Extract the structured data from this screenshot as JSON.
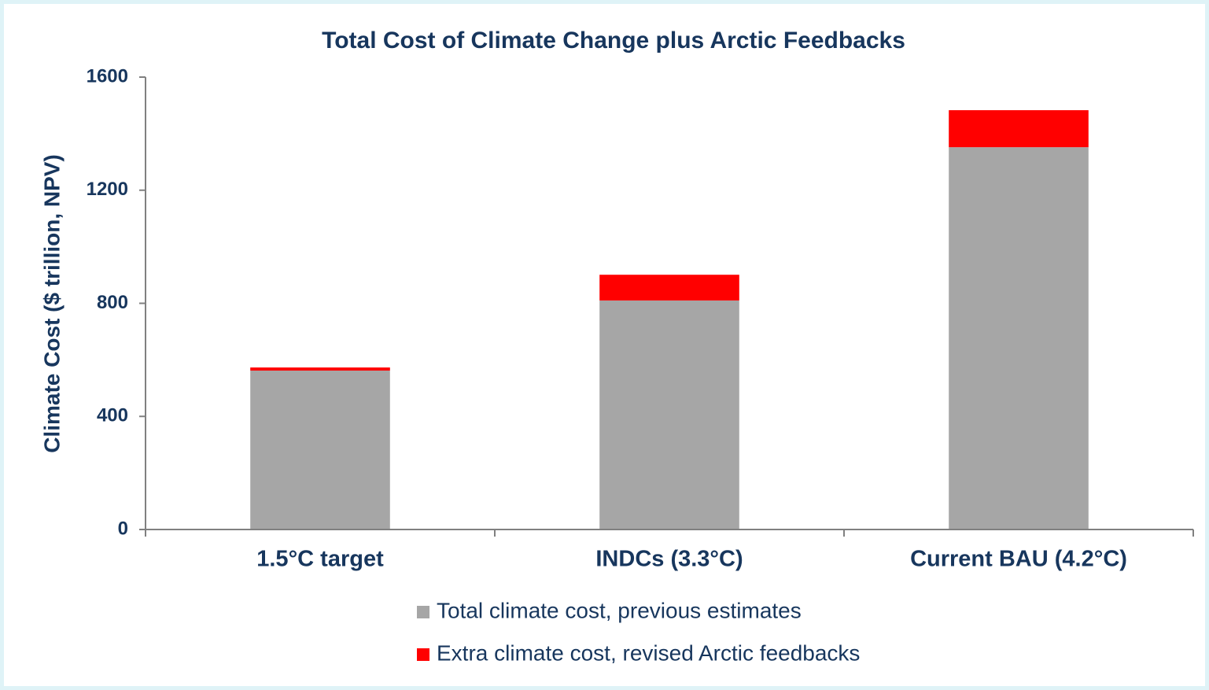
{
  "chart_data": {
    "type": "stacked_bar",
    "title": "Total Cost of Climate Change plus Arctic Feedbacks",
    "y_label": "Climate Cost ($ trillion, NPV)",
    "categories": [
      "1.5°C target",
      "INDCs (3.3°C)",
      "Current BAU (4.2°C)"
    ],
    "series": [
      {
        "name": "Total climate cost, previous estimates",
        "color": "#a6a6a6",
        "values": [
          562,
          810,
          1352
        ]
      },
      {
        "name": "Extra climate cost, revised Arctic feedbacks",
        "color": "#ff0000",
        "values": [
          11,
          91,
          131
        ]
      }
    ],
    "ylim": [
      0,
      1600
    ],
    "yticks": [
      0,
      400,
      800,
      1200,
      1600
    ],
    "grid": false,
    "legend": "bottom"
  }
}
